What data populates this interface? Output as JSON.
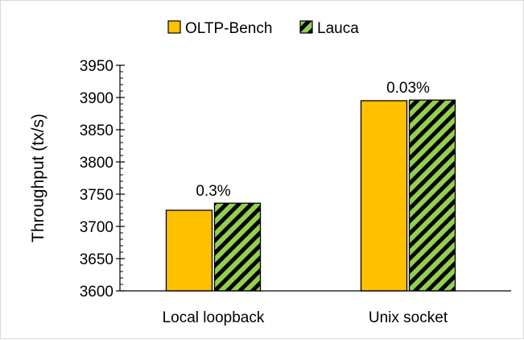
{
  "chart_data": {
    "type": "bar",
    "categories": [
      "Local loopback",
      "Unix socket"
    ],
    "series": [
      {
        "name": "OLTP-Bench",
        "values": [
          3725,
          3895
        ],
        "color": "#FFC000",
        "pattern": "solid"
      },
      {
        "name": "Lauca",
        "values": [
          3736,
          3896
        ],
        "color": "#92D050",
        "pattern": "diagonal-hatch"
      }
    ],
    "data_labels": [
      "0.3%",
      "0.03%"
    ],
    "title": "",
    "xlabel": "",
    "ylabel": "Throughput (tx/s)",
    "ylim": [
      3600,
      3950
    ],
    "yticks": [
      3600,
      3650,
      3700,
      3750,
      3800,
      3850,
      3900,
      3950
    ],
    "minor_tick_step": 10,
    "grid": false,
    "legend_position": "top-center"
  }
}
